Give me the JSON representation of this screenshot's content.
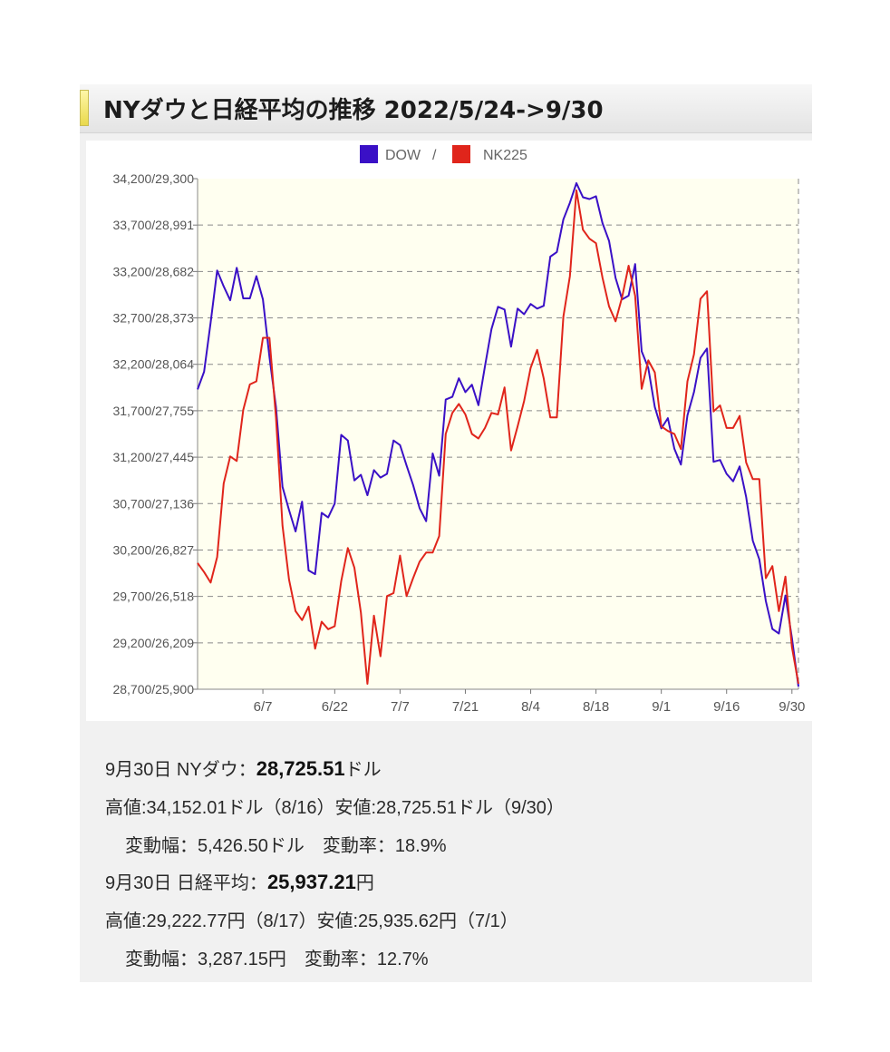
{
  "title": "NYダウと日経平均の推移 2022/5/24->9/30",
  "chart_data": {
    "type": "line",
    "legend": [
      {
        "name": "DOW",
        "color": "#3a10c6",
        "sep": "/"
      },
      {
        "name": "NK225",
        "color": "#e0251b"
      }
    ],
    "legend_placement": "top-center",
    "y_tick_labels": [
      "34,200/29,300",
      "33,700/28,991",
      "33,200/28,682",
      "32,700/28,373",
      "32,200/28,064",
      "31,700/27,755",
      "31,200/27,445",
      "30,700/27,136",
      "30,200/26,827",
      "29,700/26,518",
      "29,200/26,209",
      "28,700/25,900"
    ],
    "dow_ylim": [
      28700,
      34200
    ],
    "nk_ylim": [
      25900,
      29300
    ],
    "x_tick_labels": [
      "6/7",
      "6/22",
      "7/7",
      "7/21",
      "8/4",
      "8/18",
      "9/1",
      "9/16",
      "9/30"
    ],
    "x_tick_index": [
      10,
      21,
      31,
      41,
      51,
      61,
      71,
      81,
      91
    ],
    "grid": "dashed horizontal",
    "background": "#fffff0",
    "series": [
      {
        "name": "DOW",
        "color": "#3a10c6",
        "values": [
          31930,
          32120,
          32650,
          33210,
          33040,
          32890,
          33240,
          32910,
          32910,
          33150,
          32900,
          32280,
          31740,
          30880,
          30630,
          30400,
          30720,
          29980,
          29940,
          30600,
          30550,
          30700,
          31440,
          31380,
          30950,
          31010,
          30790,
          31060,
          30980,
          31020,
          31380,
          31330,
          31110,
          30900,
          30650,
          30510,
          31240,
          31000,
          31820,
          31850,
          32050,
          31900,
          31980,
          31760,
          32180,
          32580,
          32820,
          32790,
          32390,
          32800,
          32740,
          32850,
          32800,
          32830,
          33360,
          33410,
          33760,
          33940,
          34152,
          34000,
          33980,
          34010,
          33720,
          33530,
          33130,
          32900,
          32940,
          33280,
          32340,
          32160,
          31740,
          31510,
          31620,
          31290,
          31120,
          31650,
          31900,
          32270,
          32370,
          31150,
          31170,
          31020,
          30940,
          31100,
          30770,
          30300,
          30100,
          29650,
          29350,
          29300,
          29710,
          29250,
          28726
        ]
      },
      {
        "name": "NK225",
        "color": "#e0251b",
        "values": [
          26740,
          26680,
          26610,
          26780,
          27270,
          27450,
          27420,
          27760,
          27930,
          27950,
          28240,
          28240,
          27710,
          26990,
          26630,
          26420,
          26360,
          26450,
          26170,
          26350,
          26300,
          26320,
          26620,
          26840,
          26710,
          26410,
          25936,
          26390,
          26120,
          26520,
          26540,
          26790,
          26520,
          26640,
          26750,
          26810,
          26810,
          26920,
          27600,
          27740,
          27800,
          27730,
          27600,
          27570,
          27640,
          27740,
          27730,
          27910,
          27490,
          27650,
          27820,
          28040,
          28160,
          27970,
          27710,
          27710,
          28380,
          28650,
          29222,
          28960,
          28900,
          28870,
          28640,
          28450,
          28350,
          28510,
          28720,
          28520,
          27900,
          28090,
          28010,
          27650,
          27620,
          27600,
          27500,
          27950,
          28130,
          28500,
          28550,
          27750,
          27790,
          27640,
          27640,
          27720,
          27410,
          27300,
          27300,
          26640,
          26720,
          26420,
          26650,
          26180,
          25937
        ]
      }
    ]
  },
  "info": {
    "dow_line_prefix": "9月30日 NYダウ：",
    "dow_close": "28,725.51",
    "dow_close_unit": "ドル",
    "dow_hilo": "高値:34,152.01ドル（8/16）安値:28,725.51ドル（9/30）",
    "dow_change": "変動幅：5,426.50ドル　変動率：18.9%",
    "nk_line_prefix": "9月30日 日経平均：",
    "nk_close": "25,937.21",
    "nk_close_unit": "円",
    "nk_hilo": "高値:29,222.77円（8/17）安値:25,935.62円（7/1）",
    "nk_change": "変動幅：3,287.15円　変動率：12.7%"
  }
}
